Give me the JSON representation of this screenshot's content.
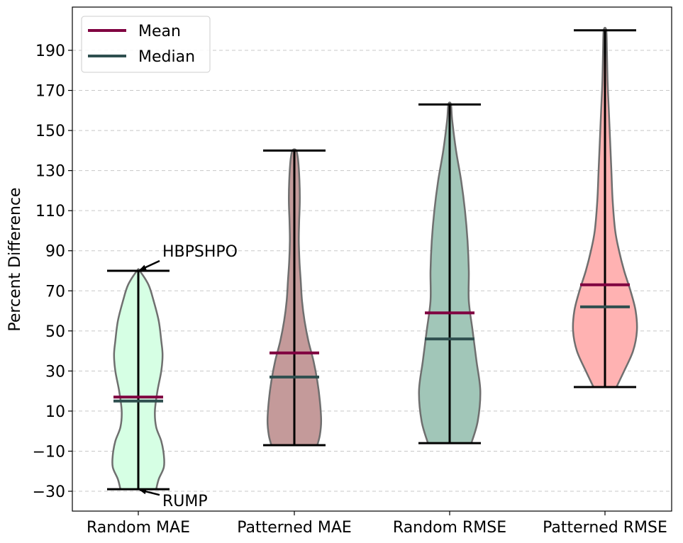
{
  "chart_data": {
    "type": "violin",
    "title": "",
    "xlabel": "",
    "ylabel": "Percent Difference",
    "ylim": [
      -40,
      212
    ],
    "yticks": [
      -30,
      -10,
      10,
      30,
      50,
      70,
      90,
      110,
      130,
      150,
      170,
      190
    ],
    "grid": "horizontal dashed",
    "legend_position": "top-left",
    "legend": [
      {
        "label": "Mean",
        "color": "#800040"
      },
      {
        "label": "Median",
        "color": "#2f4f4f"
      }
    ],
    "categories": [
      "Random MAE",
      "Patterned MAE",
      "Random RMSE",
      "Patterned RMSE"
    ],
    "series": [
      {
        "category": "Random MAE",
        "fill": "#d6ffe4",
        "min": -29,
        "max": 80,
        "mean": 17,
        "median": 15,
        "density": [
          [
            -29,
            14
          ],
          [
            -24,
            16
          ],
          [
            -18,
            20
          ],
          [
            -12,
            20
          ],
          [
            -5,
            18
          ],
          [
            2,
            14
          ],
          [
            10,
            13
          ],
          [
            20,
            15
          ],
          [
            30,
            18
          ],
          [
            38,
            19
          ],
          [
            45,
            18
          ],
          [
            55,
            16
          ],
          [
            65,
            12
          ],
          [
            73,
            8
          ],
          [
            80,
            1
          ]
        ]
      },
      {
        "category": "Patterned MAE",
        "fill": "#c49a9a",
        "min": -7,
        "max": 140,
        "mean": 39,
        "median": 27,
        "density": [
          [
            -7,
            18
          ],
          [
            -2,
            20
          ],
          [
            5,
            21
          ],
          [
            15,
            20
          ],
          [
            25,
            18
          ],
          [
            35,
            15
          ],
          [
            45,
            11
          ],
          [
            55,
            8
          ],
          [
            65,
            6
          ],
          [
            75,
            5
          ],
          [
            85,
            4
          ],
          [
            95,
            3.5
          ],
          [
            105,
            3.8
          ],
          [
            115,
            4.3
          ],
          [
            125,
            4
          ],
          [
            135,
            3
          ],
          [
            140,
            1.5
          ]
        ]
      },
      {
        "category": "Random RMSE",
        "fill": "#a1c6b8",
        "min": -6,
        "max": 163,
        "mean": 59,
        "median": 46,
        "density": [
          [
            -6,
            17
          ],
          [
            5,
            22
          ],
          [
            20,
            24
          ],
          [
            35,
            21
          ],
          [
            50,
            18
          ],
          [
            65,
            15
          ],
          [
            80,
            15
          ],
          [
            95,
            14
          ],
          [
            110,
            12
          ],
          [
            125,
            9
          ],
          [
            140,
            5
          ],
          [
            155,
            2
          ],
          [
            163,
            1
          ]
        ]
      },
      {
        "category": "Patterned RMSE",
        "fill": "#ffb2b2",
        "min": 22,
        "max": 200,
        "mean": 73,
        "median": 62,
        "density": [
          [
            22,
            9
          ],
          [
            30,
            15
          ],
          [
            40,
            22
          ],
          [
            50,
            25
          ],
          [
            60,
            24
          ],
          [
            70,
            20
          ],
          [
            80,
            15
          ],
          [
            90,
            11
          ],
          [
            100,
            8
          ],
          [
            115,
            6
          ],
          [
            130,
            5
          ],
          [
            145,
            4
          ],
          [
            160,
            3
          ],
          [
            175,
            2
          ],
          [
            190,
            1.5
          ],
          [
            200,
            1
          ]
        ]
      }
    ],
    "annotations": [
      {
        "text": "HBPSHPO",
        "category": "Random MAE",
        "target": 80
      },
      {
        "text": "RUMP",
        "category": "Random MAE",
        "target": -29
      }
    ]
  }
}
